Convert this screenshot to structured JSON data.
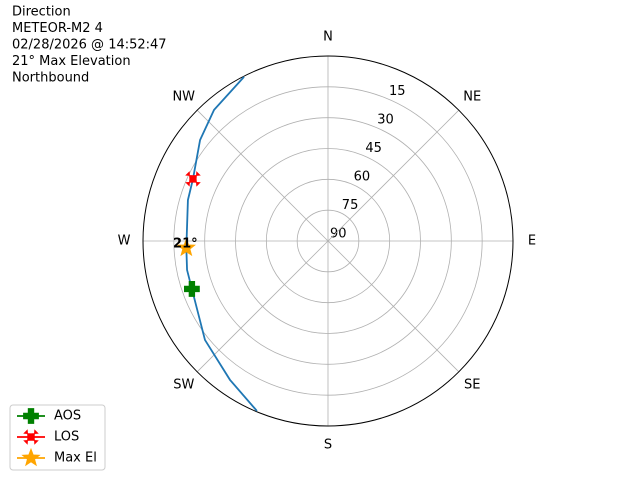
{
  "chart_data": {
    "type": "polar",
    "title": [
      "Direction",
      "METEOR-M2 4",
      "02/28/2026 @ 14:52:47",
      "21° Max Elevation",
      "Northbound"
    ],
    "xlim": [
      0,
      360
    ],
    "xticks": [
      {
        "value": 0,
        "label": "N"
      },
      {
        "value": 45,
        "label": "NE"
      },
      {
        "value": 90,
        "label": "E"
      },
      {
        "value": 135,
        "label": "SE"
      },
      {
        "value": 180,
        "label": "S"
      },
      {
        "value": 225,
        "label": "SW"
      },
      {
        "value": 270,
        "label": "W"
      },
      {
        "value": 315,
        "label": "NW"
      }
    ],
    "ylim": [
      90,
      0
    ],
    "yticks": [
      15,
      30,
      45,
      60,
      75,
      90
    ],
    "grid": true,
    "legend": "lower left",
    "series": [
      {
        "color": "#1f77b4",
        "marker": "line",
        "azimuth": [
          202.7,
          215.2,
          231.2,
          250.6,
          258.4,
          267.2,
          286.3,
          294.7,
          308.3,
          319,
          332.9
        ],
        "values": [
          0.4,
          7.3,
          13.2,
          19.8,
          20,
          21,
          19,
          17.7,
          10.7,
          5.5,
          0.3
        ]
      },
      {
        "name": "AOS",
        "color": "#008000",
        "marker": "plus",
        "azimuth": [
          250.6
        ],
        "values": [
          19.8
        ]
      },
      {
        "name": "LOS",
        "color": "#ff0000",
        "marker": "x",
        "azimuth": [
          294.7
        ],
        "values": [
          17.7
        ]
      },
      {
        "name": "Max El",
        "color": "#ffa500",
        "marker": "star",
        "azimuth": [
          267.2
        ],
        "values": [
          21
        ],
        "value_labels": [
          "21°"
        ]
      }
    ]
  }
}
